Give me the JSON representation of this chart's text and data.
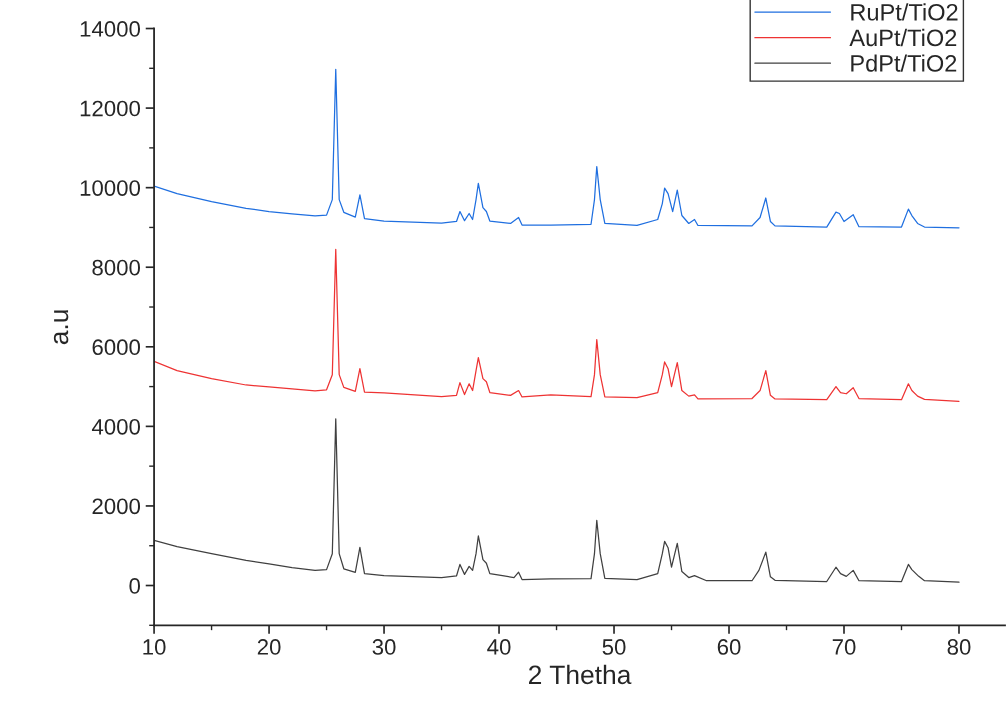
{
  "chart_data": {
    "type": "line",
    "xlabel": "2 Thetha",
    "ylabel": "a.u",
    "xlim": [
      10,
      84
    ],
    "ylim": [
      -1000,
      14000
    ],
    "xticks": [
      10,
      20,
      30,
      40,
      50,
      60,
      70,
      80
    ],
    "yticks": [
      0,
      2000,
      4000,
      6000,
      8000,
      10000,
      12000,
      14000
    ],
    "grid": false,
    "legend": "top right",
    "marker": "none",
    "line_style": "solid",
    "series": [
      {
        "name": "RuPt/TiO2",
        "color": "#1f6fe0",
        "x": [
          10,
          12,
          15,
          18,
          20,
          22,
          24,
          25,
          25.5,
          25.8,
          26.1,
          26.5,
          27.5,
          27.9,
          28.3,
          30,
          35,
          36.3,
          36.6,
          37,
          37.4,
          37.7,
          38,
          38.2,
          38.6,
          38.9,
          39.2,
          41,
          41.7,
          42,
          44.5,
          48,
          48.3,
          48.5,
          48.8,
          49.2,
          52,
          53.8,
          54.2,
          54.4,
          54.7,
          55.1,
          55.5,
          55.9,
          56.5,
          57,
          57.3,
          62,
          62.7,
          63.2,
          63.6,
          64,
          68.5,
          69.3,
          69.6,
          70,
          70.8,
          71.3,
          75,
          75.6,
          75.9,
          76.4,
          77,
          80
        ],
        "values": [
          10040,
          9850,
          9650,
          9480,
          9400,
          9340,
          9290,
          9310,
          9700,
          12975,
          9700,
          9380,
          9260,
          9820,
          9220,
          9160,
          9110,
          9150,
          9400,
          9170,
          9350,
          9200,
          9700,
          10110,
          9500,
          9400,
          9160,
          9100,
          9250,
          9060,
          9060,
          9080,
          9700,
          10530,
          9700,
          9100,
          9050,
          9200,
          9600,
          9990,
          9850,
          9400,
          9940,
          9300,
          9100,
          9200,
          9050,
          9040,
          9250,
          9740,
          9150,
          9040,
          9010,
          9385,
          9350,
          9150,
          9320,
          9020,
          9010,
          9460,
          9300,
          9100,
          9010,
          8990
        ]
      },
      {
        "name": "AuPt/TiO2",
        "color": "#ee3333",
        "x": [
          10,
          12,
          15,
          18,
          20,
          22,
          24,
          25,
          25.5,
          25.8,
          26.1,
          26.5,
          27.5,
          27.9,
          28.3,
          30,
          35,
          36.3,
          36.6,
          37,
          37.4,
          37.7,
          38,
          38.2,
          38.6,
          38.9,
          39.2,
          41,
          41.7,
          42,
          44.5,
          48,
          48.3,
          48.5,
          48.8,
          49.2,
          52,
          53.8,
          54.2,
          54.4,
          54.7,
          55,
          55.5,
          55.9,
          56.5,
          57,
          57.3,
          62,
          62.7,
          63.2,
          63.6,
          64,
          68.5,
          69.3,
          69.7,
          70.2,
          70.8,
          71.3,
          75,
          75.6,
          75.9,
          76.4,
          77,
          80
        ],
        "values": [
          5635,
          5400,
          5200,
          5040,
          4990,
          4940,
          4895,
          4920,
          5300,
          8450,
          5300,
          4980,
          4880,
          5450,
          4860,
          4840,
          4750,
          4780,
          5100,
          4800,
          5070,
          4900,
          5400,
          5730,
          5200,
          5120,
          4850,
          4780,
          4900,
          4740,
          4790,
          4750,
          5300,
          6180,
          5300,
          4740,
          4720,
          4850,
          5300,
          5620,
          5450,
          5000,
          5600,
          4900,
          4760,
          4790,
          4690,
          4700,
          4900,
          5400,
          4780,
          4690,
          4670,
          5000,
          4850,
          4820,
          4970,
          4700,
          4670,
          5070,
          4900,
          4760,
          4680,
          4630
        ]
      },
      {
        "name": "PdPt/TiO2",
        "color": "#404040",
        "x": [
          10,
          12,
          15,
          18,
          20,
          22,
          24,
          25,
          25.5,
          25.8,
          26.1,
          26.5,
          27.5,
          27.9,
          28.3,
          30,
          35,
          36.3,
          36.6,
          37,
          37.4,
          37.7,
          38,
          38.2,
          38.6,
          38.9,
          39.2,
          40.3,
          41.3,
          41.7,
          42,
          44.5,
          48,
          48.3,
          48.5,
          48.8,
          49.2,
          52,
          53.8,
          54.2,
          54.4,
          54.7,
          55,
          55.5,
          55.9,
          56.5,
          57,
          58,
          62,
          62.6,
          63.2,
          63.6,
          64,
          68.5,
          69.3,
          69.7,
          70.2,
          70.8,
          71.3,
          75,
          75.6,
          75.9,
          76.5,
          77,
          80
        ],
        "values": [
          1135,
          980,
          800,
          630,
          545,
          450,
          380,
          400,
          800,
          4190,
          800,
          420,
          330,
          960,
          300,
          250,
          200,
          240,
          530,
          280,
          480,
          380,
          800,
          1245,
          650,
          560,
          300,
          250,
          200,
          335,
          150,
          170,
          175,
          800,
          1640,
          800,
          180,
          150,
          300,
          800,
          1110,
          950,
          460,
          1060,
          350,
          200,
          250,
          125,
          120,
          380,
          840,
          220,
          130,
          100,
          460,
          300,
          230,
          380,
          120,
          100,
          530,
          400,
          230,
          120,
          85
        ]
      }
    ]
  }
}
